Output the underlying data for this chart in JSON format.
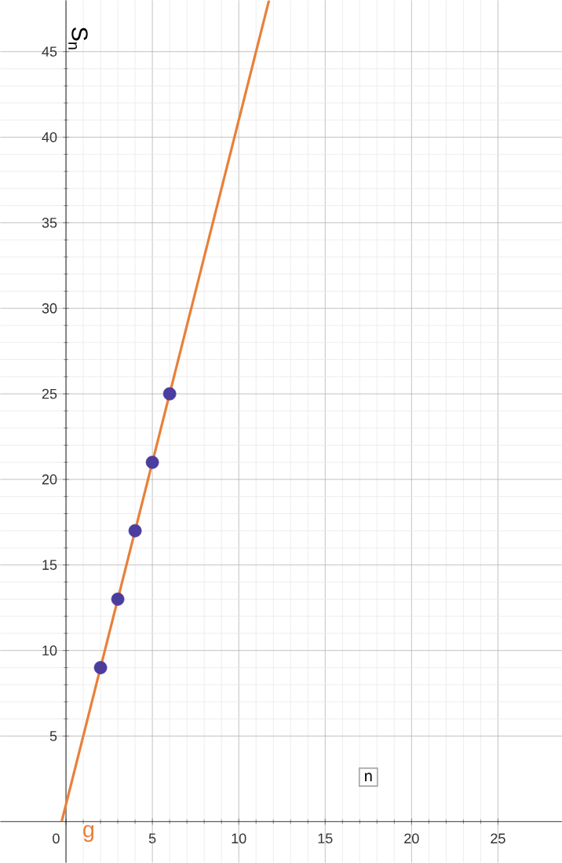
{
  "chart_data": {
    "type": "line",
    "xlabel": "n",
    "ylabel": "S$_{n}$",
    "xlim": [
      -3.8,
      28.7
    ],
    "ylim": [
      -2.4,
      48
    ],
    "xticks": [
      0,
      5,
      10,
      15,
      20,
      25
    ],
    "yticks": [
      5,
      10,
      15,
      20,
      25,
      30,
      35,
      40,
      45
    ],
    "grid": true,
    "series": [
      {
        "name": "g",
        "marker": "none",
        "color": "#e8803a",
        "x": [
          -0.25,
          11.75
        ],
        "values": [
          0,
          48
        ]
      },
      {
        "type": "scatter",
        "marker": "circle",
        "color": "#4a3d9e",
        "x": [
          2,
          3,
          4,
          5,
          6
        ],
        "values": [
          9,
          13,
          17,
          21,
          25
        ]
      }
    ]
  }
}
